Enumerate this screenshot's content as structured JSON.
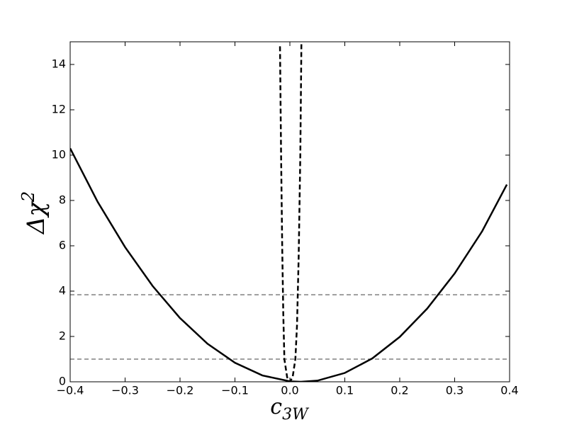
{
  "chart_data": {
    "type": "line",
    "xlabel": [
      "c",
      "3W"
    ],
    "ylabel": [
      "Δχ",
      "2"
    ],
    "xlim": [
      -0.4,
      0.4
    ],
    "ylim": [
      0,
      15
    ],
    "xticks": [
      {
        "value": -0.4,
        "label": "−0.4"
      },
      {
        "value": -0.3,
        "label": "−0.3"
      },
      {
        "value": -0.2,
        "label": "−0.2"
      },
      {
        "value": -0.1,
        "label": "−0.1"
      },
      {
        "value": 0,
        "label": "0.0"
      },
      {
        "value": 0.1,
        "label": "0.1"
      },
      {
        "value": 0.2,
        "label": "0.2"
      },
      {
        "value": 0.3,
        "label": "0.3"
      },
      {
        "value": 0.4,
        "label": "0.4"
      }
    ],
    "yticks": [
      0,
      2,
      4,
      6,
      8,
      10,
      12,
      14
    ],
    "series": [
      {
        "color": "#000000",
        "style": "solid",
        "x": [
          -0.4,
          -0.35,
          -0.3,
          -0.25,
          -0.2,
          -0.15,
          -0.1,
          -0.05,
          0,
          0.02,
          0.05,
          0.1,
          0.15,
          0.2,
          0.25,
          0.3,
          0.35,
          0.395
        ],
        "values": [
          10.3,
          7.94,
          5.94,
          4.23,
          2.81,
          1.68,
          0.84,
          0.28,
          0.02,
          0,
          0.05,
          0.39,
          1.03,
          1.98,
          3.23,
          4.78,
          6.64,
          8.7
        ]
      },
      {
        "color": "#000000",
        "style": "dashed",
        "x": [
          -0.018,
          -0.016,
          -0.014,
          -0.012,
          -0.01,
          -0.005,
          0,
          0.005,
          0.01,
          0.013,
          0.016,
          0.019,
          0.021
        ],
        "values": [
          14.8,
          10,
          6,
          3,
          1,
          0.2,
          0,
          0.2,
          1,
          2.5,
          5.5,
          10,
          15
        ]
      }
    ],
    "hlines": [
      {
        "value": 1,
        "color": "#808080"
      },
      {
        "value": 3.84,
        "color": "#808080"
      }
    ]
  }
}
